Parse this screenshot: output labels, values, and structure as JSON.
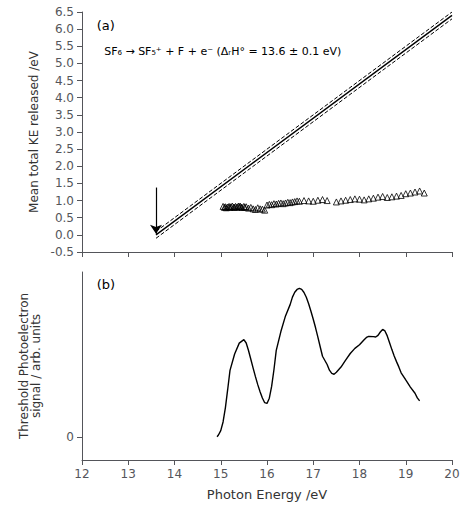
{
  "chart_data": [
    {
      "type": "scatter",
      "ylabel": "Mean total KE released /eV",
      "xlim": [
        12,
        20
      ],
      "xticks": [
        12,
        13,
        14,
        15,
        16,
        17,
        18,
        19,
        20
      ],
      "ylim": [
        -0.5,
        6.5
      ],
      "yticks": [
        -0.5,
        {
          "value": 0,
          "label": "0.0"
        },
        0.5,
        {
          "value": 1,
          "label": "1.0"
        },
        1.5,
        {
          "value": 2,
          "label": "2.0"
        },
        2.5,
        {
          "value": 3,
          "label": "3.0"
        },
        3.5,
        {
          "value": 4,
          "label": "4.0"
        },
        4.5,
        {
          "value": 5,
          "label": "5.0"
        },
        5.5,
        {
          "value": 6,
          "label": "6.0"
        },
        6.5
      ],
      "tick_labels": "y",
      "grid": false,
      "annotations": [
        "(a)",
        "SF₆ → SF₅⁺ + F + e⁻ (ΔᵣH° = 13.6 ± 0.1 eV)"
      ],
      "arrow": {
        "x": 13.6,
        "y_start": 1.38,
        "y_end": 0.03,
        "color": "#000000"
      },
      "series": [
        {
          "type": "line",
          "line_style": "solid",
          "color": "#000000",
          "x": [
            13.6,
            20
          ],
          "values": [
            0,
            6.4
          ]
        },
        {
          "type": "line",
          "line_style": "dashed",
          "color": "#000000",
          "x": [
            13.6,
            20
          ],
          "values": [
            0.1,
            6.5
          ]
        },
        {
          "type": "line",
          "line_style": "dashed",
          "color": "#000000",
          "x": [
            13.6,
            20
          ],
          "values": [
            -0.1,
            6.3
          ]
        },
        {
          "type": "scatter",
          "marker": "open_triangle",
          "color": "#000000",
          "x": [
            15.05,
            15.08,
            15.1,
            15.12,
            15.15,
            15.18,
            15.2,
            15.22,
            15.25,
            15.28,
            15.3,
            15.32,
            15.35,
            15.38,
            15.4,
            15.42,
            15.44,
            15.46,
            15.5,
            15.52,
            15.55,
            15.6,
            15.65,
            15.7,
            15.75,
            15.8,
            15.85,
            15.9,
            15.95,
            16.0,
            16.05,
            16.1,
            16.15,
            16.2,
            16.25,
            16.3,
            16.35,
            16.4,
            16.45,
            16.5,
            16.55,
            16.6,
            16.65,
            16.7,
            16.8,
            16.9,
            17.0,
            17.1,
            17.2,
            17.3,
            17.5,
            17.6,
            17.7,
            17.8,
            17.9,
            18.0,
            18.1,
            18.2,
            18.3,
            18.4,
            18.5,
            18.6,
            18.7,
            18.8,
            18.9,
            19.0,
            19.1,
            19.2,
            19.3,
            19.4
          ],
          "values": [
            0.83,
            0.8,
            0.82,
            0.79,
            0.81,
            0.83,
            0.8,
            0.82,
            0.84,
            0.81,
            0.8,
            0.83,
            0.81,
            0.84,
            0.82,
            0.84,
            0.81,
            0.8,
            0.83,
            0.8,
            0.82,
            0.78,
            0.8,
            0.76,
            0.74,
            0.79,
            0.76,
            0.75,
            0.72,
            0.87,
            0.89,
            0.88,
            0.91,
            0.9,
            0.92,
            0.93,
            0.91,
            0.93,
            0.95,
            0.94,
            0.96,
            0.97,
            0.99,
            0.98,
            1.0,
            0.99,
            0.98,
            1.01,
            1.03,
            1.0,
            0.96,
            0.99,
            1.01,
            1.03,
            1.05,
            1.04,
            1.02,
            1.05,
            1.07,
            1.1,
            1.12,
            1.09,
            1.11,
            1.13,
            1.15,
            1.2,
            1.22,
            1.25,
            1.28,
            1.22
          ]
        }
      ]
    },
    {
      "type": "line",
      "xlabel": "Photon Energy /eV",
      "ylabel": "Threshold Photoelectron\nsignal / arb. units",
      "xlim": [
        12,
        20
      ],
      "xticks": [
        12,
        13,
        14,
        15,
        16,
        17,
        18,
        19,
        20
      ],
      "ylim": [
        -0.15,
        1.1
      ],
      "yticks": [
        0
      ],
      "grid": false,
      "annotations": [
        "(b)"
      ],
      "series": [
        {
          "type": "line",
          "line_style": "solid",
          "color": "#000000",
          "x": [
            14.92,
            14.95,
            15.0,
            15.05,
            15.1,
            15.15,
            15.2,
            15.3,
            15.4,
            15.5,
            15.55,
            15.6,
            15.65,
            15.7,
            15.75,
            15.8,
            15.85,
            15.9,
            15.95,
            16.0,
            16.05,
            16.1,
            16.15,
            16.2,
            16.3,
            16.4,
            16.5,
            16.55,
            16.6,
            16.65,
            16.7,
            16.75,
            16.8,
            16.85,
            16.9,
            16.95,
            17.0,
            17.05,
            17.1,
            17.15,
            17.2,
            17.3,
            17.35,
            17.4,
            17.45,
            17.5,
            17.6,
            17.7,
            17.8,
            17.9,
            18.0,
            18.05,
            18.1,
            18.15,
            18.2,
            18.3,
            18.35,
            18.4,
            18.45,
            18.5,
            18.55,
            18.6,
            18.65,
            18.7,
            18.75,
            18.8,
            18.85,
            18.9,
            19.0,
            19.1,
            19.2,
            19.25,
            19.3
          ],
          "values": [
            0.005,
            0.016,
            0.045,
            0.103,
            0.197,
            0.319,
            0.446,
            0.555,
            0.627,
            0.65,
            0.628,
            0.578,
            0.52,
            0.461,
            0.404,
            0.351,
            0.304,
            0.262,
            0.231,
            0.226,
            0.261,
            0.339,
            0.45,
            0.579,
            0.704,
            0.808,
            0.883,
            0.933,
            0.965,
            0.984,
            0.991,
            0.984,
            0.964,
            0.932,
            0.889,
            0.839,
            0.786,
            0.729,
            0.667,
            0.603,
            0.54,
            0.485,
            0.447,
            0.426,
            0.42,
            0.433,
            0.468,
            0.514,
            0.558,
            0.592,
            0.616,
            0.633,
            0.65,
            0.665,
            0.672,
            0.67,
            0.668,
            0.679,
            0.701,
            0.718,
            0.708,
            0.675,
            0.63,
            0.584,
            0.541,
            0.504,
            0.469,
            0.43,
            0.382,
            0.335,
            0.294,
            0.263,
            0.243
          ]
        }
      ]
    }
  ]
}
